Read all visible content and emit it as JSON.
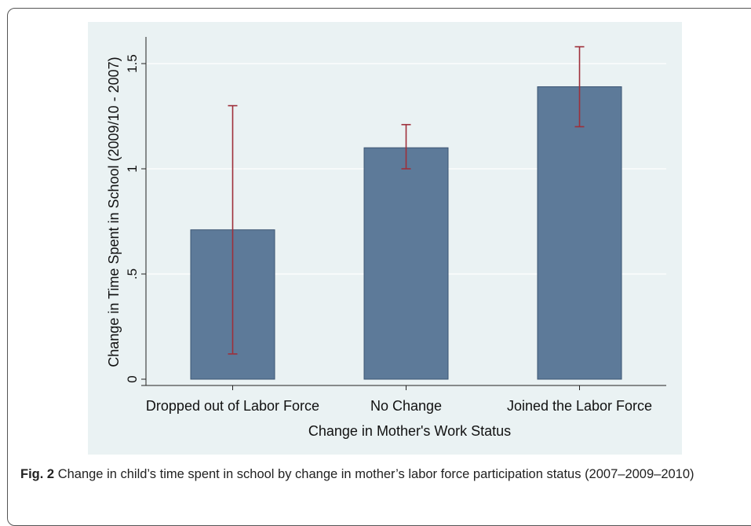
{
  "chart_data": {
    "type": "bar",
    "categories": [
      "Dropped out of Labor Force",
      "No Change",
      "Joined the Labor Force"
    ],
    "values": [
      0.71,
      1.1,
      1.39
    ],
    "error_low": [
      0.12,
      1.0,
      1.2
    ],
    "error_high": [
      1.3,
      1.21,
      1.58
    ],
    "xlabel": "Change in Mother's Work Status",
    "ylabel": "Change in Time Spent in School (2009/10 - 2007)",
    "ylim": [
      0,
      1.5
    ],
    "yticks": [
      0,
      0.5,
      1,
      1.5
    ],
    "ytick_labels": [
      "0",
      ".5",
      "1",
      "1.5"
    ],
    "grid": true,
    "colors": {
      "bar": "#5d7a99",
      "bar_edge": "#3c5573",
      "error": "#9e2f3a",
      "panel": "#eaf2f3",
      "grid": "#ffffff"
    }
  },
  "caption": {
    "label": "Fig. 2",
    "text": "Change in child’s time spent in school by change in mother’s labor force participation status (2007–2009–2010)"
  }
}
